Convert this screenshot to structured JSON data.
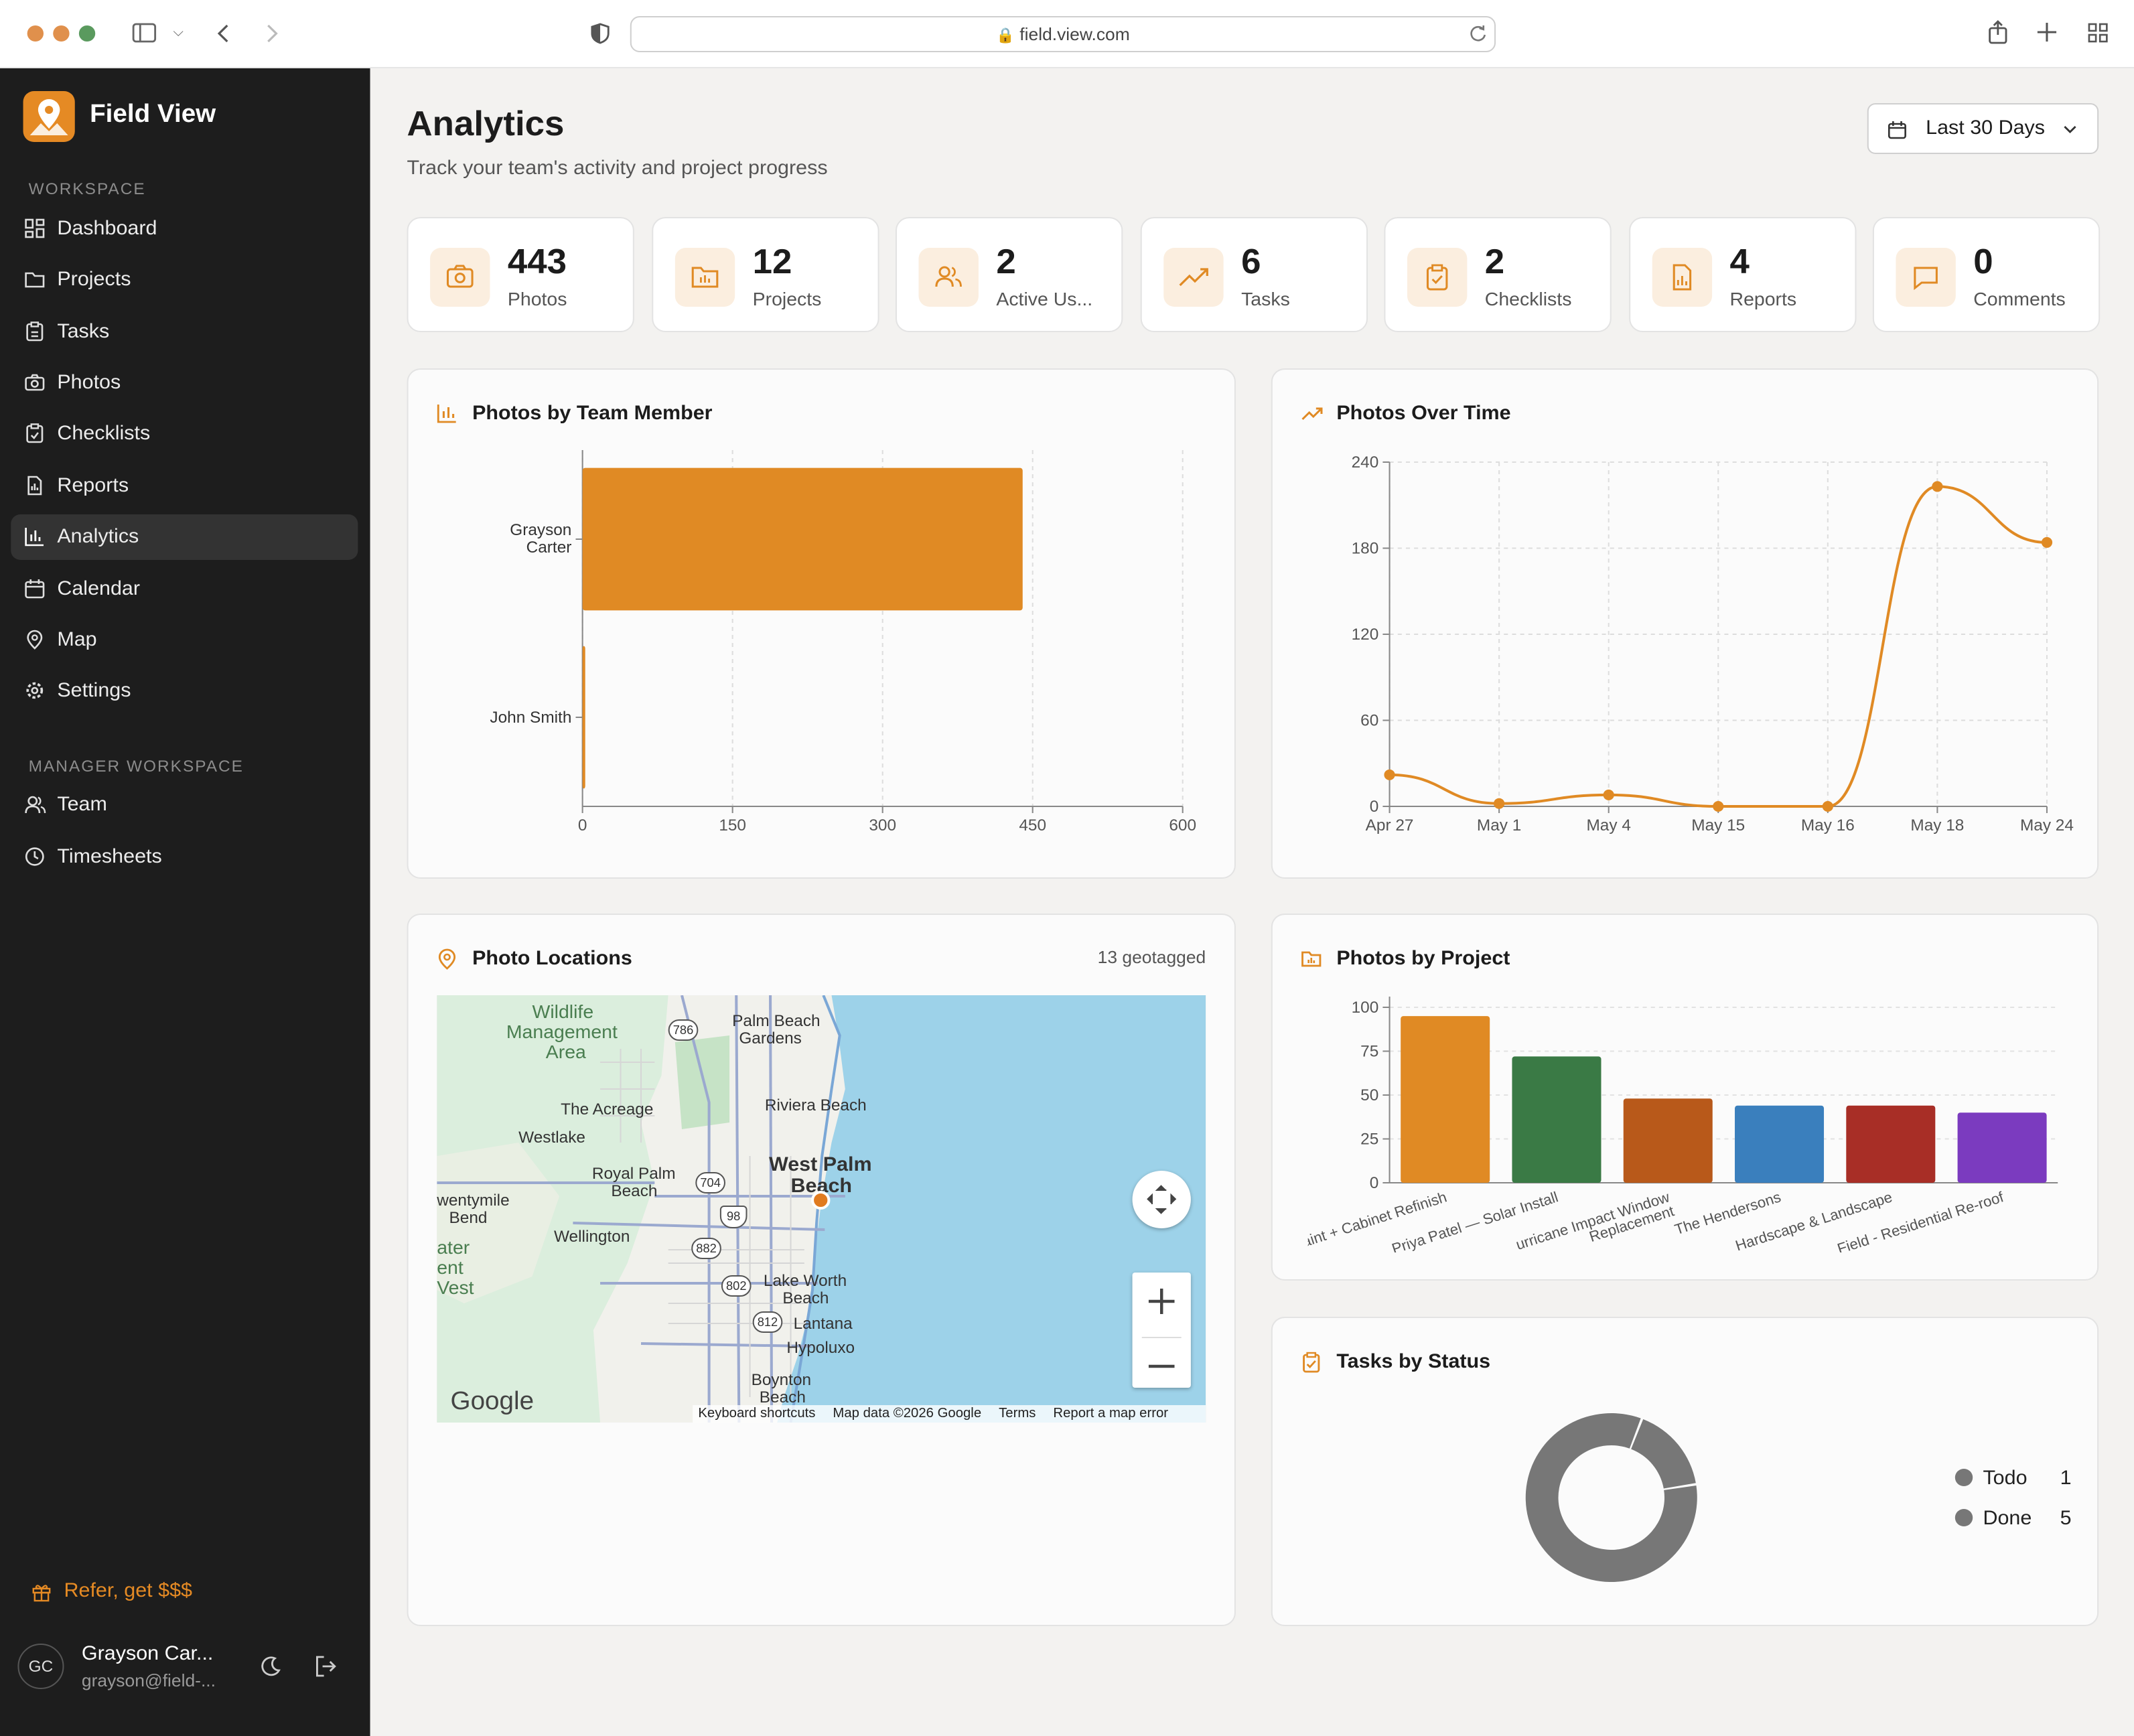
{
  "browser": {
    "url": "field.view.com"
  },
  "sidebar": {
    "brand": "Field View",
    "workspace_label": "WORKSPACE",
    "items": [
      {
        "label": "Dashboard",
        "icon": "dashboard-icon"
      },
      {
        "label": "Projects",
        "icon": "folder-icon"
      },
      {
        "label": "Tasks",
        "icon": "clipboard-icon"
      },
      {
        "label": "Photos",
        "icon": "camera-icon"
      },
      {
        "label": "Checklists",
        "icon": "checklist-icon"
      },
      {
        "label": "Reports",
        "icon": "report-icon"
      },
      {
        "label": "Analytics",
        "icon": "chart-icon",
        "active": true
      },
      {
        "label": "Calendar",
        "icon": "calendar-icon"
      },
      {
        "label": "Map",
        "icon": "map-pin-icon"
      },
      {
        "label": "Settings",
        "icon": "gear-icon"
      }
    ],
    "manager_label": "MANAGER WORKSPACE",
    "manager_items": [
      {
        "label": "Team",
        "icon": "users-icon"
      },
      {
        "label": "Timesheets",
        "icon": "clock-icon"
      }
    ],
    "refer": "Refer, get $$$",
    "user": {
      "initials": "GC",
      "name": "Grayson Car...",
      "email": "grayson@field-..."
    }
  },
  "header": {
    "title": "Analytics",
    "subtitle": "Track your team's activity and project progress",
    "range": "Last 30 Days"
  },
  "stats": [
    {
      "value": "443",
      "label": "Photos",
      "icon": "camera-icon"
    },
    {
      "value": "12",
      "label": "Projects",
      "icon": "folder-icon"
    },
    {
      "value": "2",
      "label": "Active Us...",
      "icon": "users-icon"
    },
    {
      "value": "6",
      "label": "Tasks",
      "icon": "trend-icon"
    },
    {
      "value": "2",
      "label": "Checklists",
      "icon": "checklist-icon"
    },
    {
      "value": "4",
      "label": "Reports",
      "icon": "report-icon"
    },
    {
      "value": "0",
      "label": "Comments",
      "icon": "comment-icon"
    }
  ],
  "cards": {
    "team": "Photos by Team Member",
    "time": "Photos Over Time",
    "locations": "Photo Locations",
    "geotagged": "13 geotagged",
    "project": "Photos by Project",
    "status": "Tasks by Status"
  },
  "map": {
    "labels": [
      "Wildlife",
      "Management",
      "Area",
      "Palm Beach",
      "Gardens",
      "The Acreage",
      "Riviera Beach",
      "Westlake",
      "West Palm",
      "Beach",
      "Royal Palm",
      "Beach",
      "wentymile",
      "Bend",
      "Wellington",
      "ater",
      "ent",
      "Vest",
      "Lake Worth",
      "Beach",
      "Lantana",
      "Hypoluxo",
      "Boynton",
      "Beach"
    ],
    "shields": [
      "786",
      "704",
      "98",
      "882",
      "802",
      "812"
    ],
    "google": "Google",
    "footer": [
      "Keyboard shortcuts",
      "Map data ©2026 Google",
      "Terms",
      "Report a map error"
    ]
  },
  "chart_data": [
    {
      "type": "bar",
      "orientation": "horizontal",
      "categories": [
        "Grayson Carter",
        "John Smith"
      ],
      "values": [
        440,
        2
      ],
      "xlim": [
        0,
        600
      ],
      "xticks": [
        "0",
        "150",
        "300",
        "450",
        "600"
      ],
      "color": "#e08a24"
    },
    {
      "type": "line",
      "x": [
        "Apr 27",
        "May 1",
        "May 4",
        "May 15",
        "May 16",
        "May 18",
        "May 24"
      ],
      "values": [
        22,
        2,
        8,
        0,
        0,
        223,
        184
      ],
      "ylim": [
        0,
        240
      ],
      "yticks": [
        "0",
        "60",
        "120",
        "180",
        "240"
      ],
      "color": "#e08a24"
    },
    {
      "type": "bar",
      "categories": [
        "Paint + Cabinet Refinish",
        "Priya Patel — Solar Install",
        "Hurricane Impact Window Replacement",
        "The Hendersons",
        "Hardscape & Landscape",
        "Field - Residential Re-roof"
      ],
      "tick_labels": [
        "aint + Cabinet Refinish",
        "Priya Patel — Solar Install",
        "urricane Impact Window",
        "Replacement",
        "The Hendersons",
        "Hardscape & Landscape",
        "Field - Residential Re-roof"
      ],
      "values": [
        95,
        72,
        48,
        44,
        44,
        40
      ],
      "colors": [
        "#e08a24",
        "#3a7a45",
        "#b8591a",
        "#3a7fbd",
        "#a82e26",
        "#7b3bbf"
      ],
      "ylim": [
        0,
        100
      ],
      "yticks": [
        "0",
        "25",
        "50",
        "75",
        "100"
      ]
    },
    {
      "type": "pie",
      "donut": true,
      "categories": [
        "Todo",
        "Done"
      ],
      "values": [
        1,
        5
      ],
      "legend": [
        "Todo",
        "Done"
      ],
      "counts": [
        "1",
        "5"
      ],
      "color": "#777777"
    }
  ]
}
